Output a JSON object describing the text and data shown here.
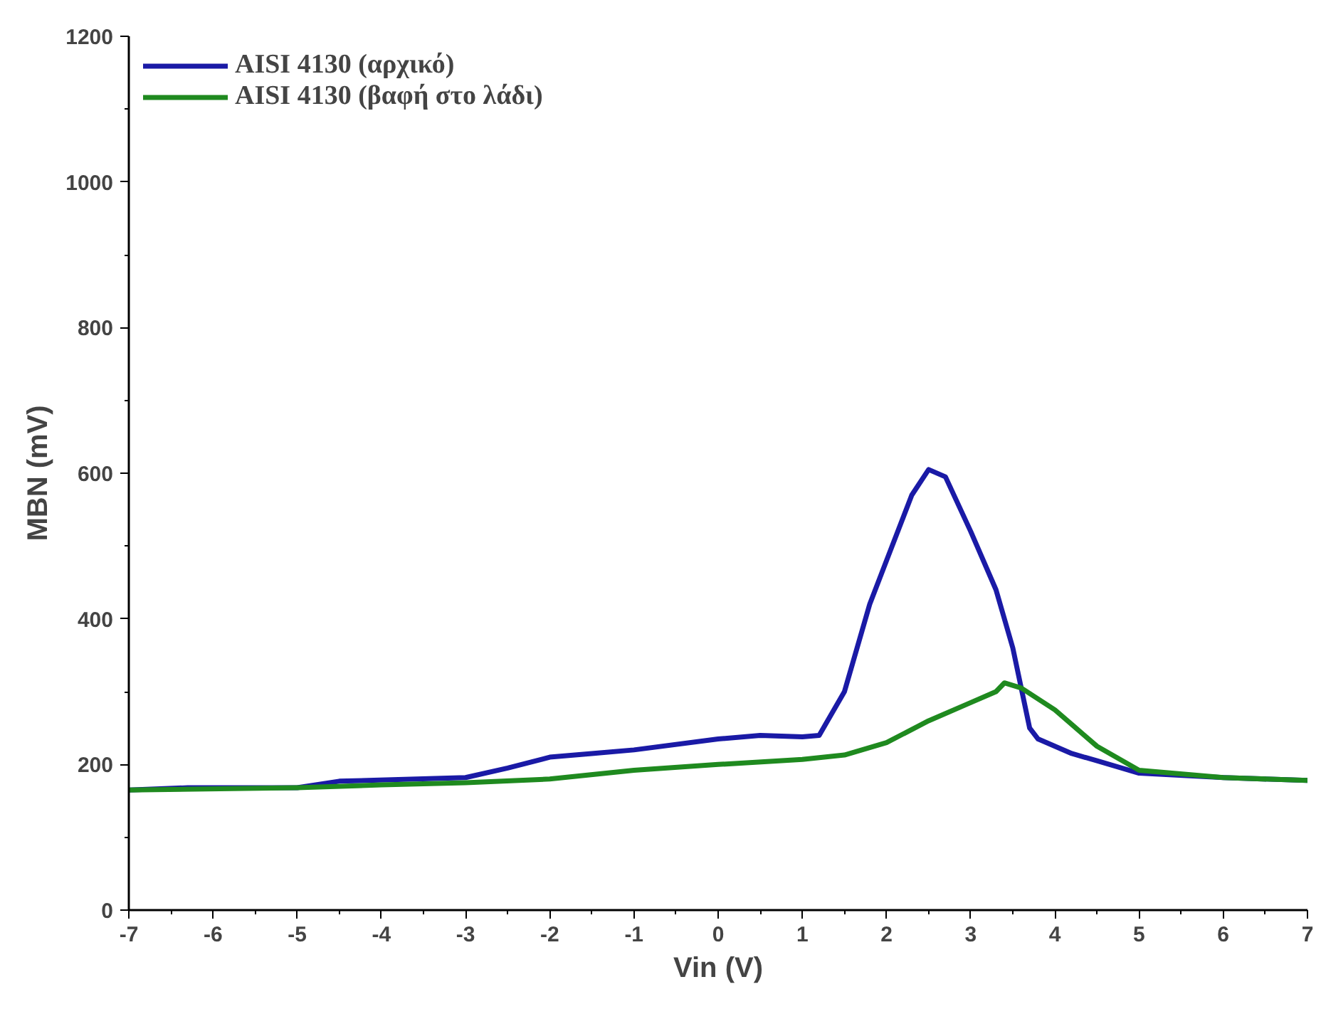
{
  "chart_data": {
    "type": "line",
    "xlabel": "Vin (V)",
    "ylabel": "MBN (mV)",
    "xlim": [
      -7,
      7
    ],
    "xticks": [
      -7,
      -6,
      -5,
      -4,
      -3,
      -2,
      -1,
      0,
      1,
      2,
      3,
      4,
      5,
      6,
      7
    ],
    "ylim": [
      0,
      1200
    ],
    "yticks": [
      0,
      200,
      400,
      600,
      800,
      1000,
      1200
    ],
    "grid": false,
    "legend": "top left",
    "marker": "none",
    "line_style": "solid",
    "series": [
      {
        "name": "AISI 4130 (αρχικό)",
        "color": "#1a1aa6",
        "x": [
          -7,
          -6.3,
          -5,
          -4.5,
          -3,
          -2.5,
          -2,
          -1.5,
          -1,
          0,
          0.5,
          1,
          1.2,
          1.5,
          1.8,
          2.0,
          2.3,
          2.5,
          2.7,
          3.0,
          3.3,
          3.5,
          3.7,
          3.8,
          4.2,
          4.5,
          5.0,
          6,
          7
        ],
        "values": [
          165,
          168,
          168,
          177,
          182,
          195,
          210,
          215,
          220,
          235,
          240,
          238,
          240,
          300,
          420,
          480,
          570,
          605,
          595,
          520,
          440,
          360,
          250,
          235,
          215,
          205,
          188,
          182,
          178
        ]
      },
      {
        "name": "AISI 4130 (βαφή στο λάδι)",
        "color": "#1f8a1f",
        "x": [
          -7,
          -5,
          -4,
          -3,
          -2,
          -1,
          0,
          1,
          1.5,
          2,
          2.5,
          3,
          3.3,
          3.4,
          3.6,
          4,
          4.5,
          5,
          6,
          7
        ],
        "values": [
          165,
          168,
          172,
          175,
          180,
          192,
          200,
          207,
          213,
          230,
          260,
          285,
          300,
          312,
          305,
          275,
          225,
          192,
          182,
          178
        ]
      }
    ]
  }
}
